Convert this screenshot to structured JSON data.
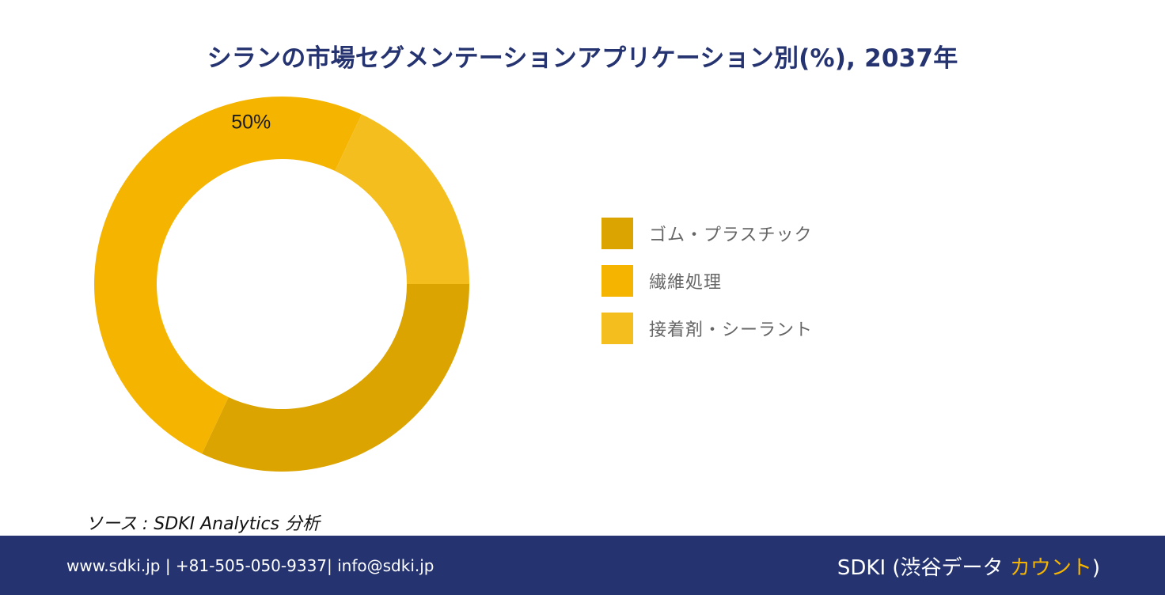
{
  "chart_data": {
    "type": "pie",
    "variant": "donut",
    "title": "シランの市場セグメンテーションアプリケーション別(%), 2037年",
    "categories": [
      "ゴム・プラスチック",
      "繊維処理",
      "接着剤・シーラント"
    ],
    "values": [
      32,
      50,
      18
    ],
    "colors": [
      "#dba400",
      "#f5b400",
      "#f5be1f"
    ],
    "data_labels": [
      {
        "category": "繊維処理",
        "text": "50%"
      }
    ],
    "legend_position": "right"
  },
  "source": {
    "text": "ソース : SDKI Analytics 分析"
  },
  "footer": {
    "contact": "www.sdki.jp | +81-505-050-9337| info@sdki.jp",
    "brand_prefix": "SDKI (渋谷データ ",
    "brand_accent": "カウント",
    "brand_suffix": ")",
    "background": "#253470",
    "accent_color": "#f5b400"
  }
}
